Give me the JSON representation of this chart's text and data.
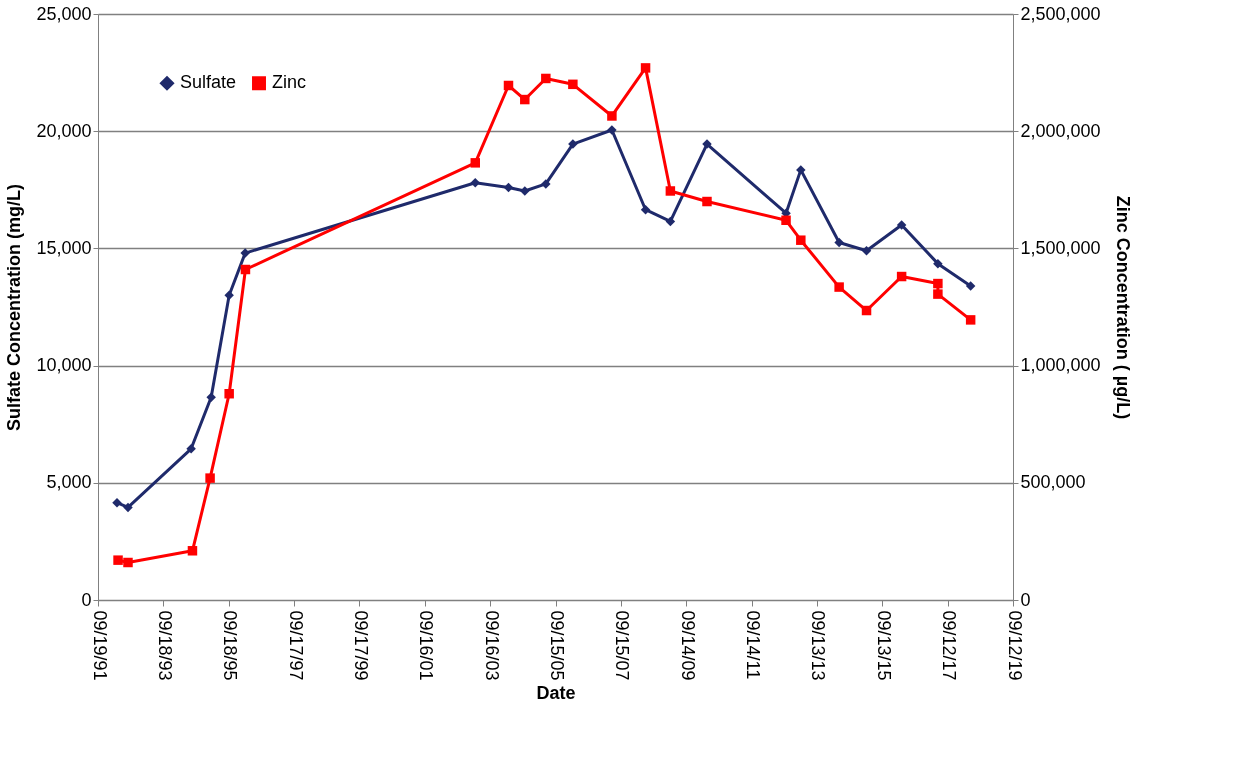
{
  "chart_data": {
    "type": "line",
    "xlabel": "Date",
    "ylabel": "Sulfate Concentration (mg/L)",
    "y2label": "Zinc Concentration ( µg/L)",
    "xlim": [
      "1991-09-19",
      "2019-09-12"
    ],
    "xticks": [
      {
        "value": "1991-09-19",
        "label": "09/19/91"
      },
      {
        "value": "1993-09-18",
        "label": "09/18/93"
      },
      {
        "value": "1995-09-18",
        "label": "09/18/95"
      },
      {
        "value": "1997-09-17",
        "label": "09/17/97"
      },
      {
        "value": "1999-09-17",
        "label": "09/17/99"
      },
      {
        "value": "2001-09-16",
        "label": "09/16/01"
      },
      {
        "value": "2003-09-16",
        "label": "09/16/03"
      },
      {
        "value": "2005-09-15",
        "label": "09/15/05"
      },
      {
        "value": "2007-09-15",
        "label": "09/15/07"
      },
      {
        "value": "2009-09-14",
        "label": "09/14/09"
      },
      {
        "value": "2011-09-14",
        "label": "09/14/11"
      },
      {
        "value": "2013-09-13",
        "label": "09/13/13"
      },
      {
        "value": "2015-09-13",
        "label": "09/13/15"
      },
      {
        "value": "2017-09-12",
        "label": "09/12/17"
      },
      {
        "value": "2019-09-12",
        "label": "09/12/19"
      }
    ],
    "ylim": [
      0,
      25000
    ],
    "yticks": [
      0,
      {
        "value": 5000,
        "label": "5,000"
      },
      {
        "value": 10000,
        "label": "10,000"
      },
      {
        "value": 15000,
        "label": "15,000"
      },
      {
        "value": 20000,
        "label": "20,000"
      },
      {
        "value": 25000,
        "label": "25,000"
      }
    ],
    "y2lim": [
      0,
      2500000
    ],
    "y2ticks": [
      0,
      {
        "value": 500000,
        "label": "500,000"
      },
      {
        "value": 1000000,
        "label": "1,000,000"
      },
      {
        "value": 1500000,
        "label": "1,500,000"
      },
      {
        "value": 2000000,
        "label": "2,000,000"
      },
      {
        "value": 2500000,
        "label": "2,500,000"
      }
    ],
    "grid": "y",
    "legend": "top left",
    "series": [
      {
        "name": "Sulfate",
        "color": "#1f2a6b",
        "marker": "diamond",
        "x": [
          "1992-04-18",
          "1992-08-19",
          "1994-07-25",
          "1995-03-06",
          "1995-09-23",
          "1996-03-20",
          "2003-04-03",
          "2004-04-08",
          "2004-10-07",
          "2005-05-30",
          "2006-03-28",
          "2007-06-07",
          "2008-06-17",
          "2009-03-21",
          "2010-05-04",
          "2012-10-03",
          "2013-03-17",
          "2014-05-19",
          "2015-03-21",
          "2016-04-16",
          "2017-05-26",
          "2018-05-27"
        ],
        "values": [
          4150,
          3950,
          6450,
          8650,
          13000,
          14800,
          17800,
          17600,
          17450,
          17750,
          19450,
          20050,
          16650,
          16150,
          19450,
          16500,
          18350,
          15250,
          14900,
          16000,
          14350,
          13400
        ]
      },
      {
        "name": "Zinc",
        "color": "#ff0000",
        "marker": "square",
        "axis": "y2",
        "x": [
          "1992-04-30",
          "1992-08-19",
          "1994-08-09",
          "1995-02-22",
          "1995-09-23",
          "1996-03-23",
          "2003-04-03",
          "2004-04-08",
          "2004-10-07",
          "2005-05-30",
          "2006-03-28",
          "2007-06-07",
          "2008-06-17",
          "2009-03-21",
          "2010-05-04",
          "2012-10-03",
          "2013-03-17",
          "2014-05-19",
          "2015-03-21",
          "2016-04-16",
          "2017-05-26",
          "2017-05-26",
          "2018-05-27"
        ],
        "values": [
          170000,
          160000,
          210000,
          520000,
          880000,
          1410000,
          1865000,
          2195000,
          2135000,
          2225000,
          2200000,
          2065000,
          2270000,
          1745000,
          1700000,
          1620000,
          1535000,
          1335000,
          1235000,
          1380000,
          1350000,
          1305000,
          1195000
        ]
      }
    ]
  }
}
